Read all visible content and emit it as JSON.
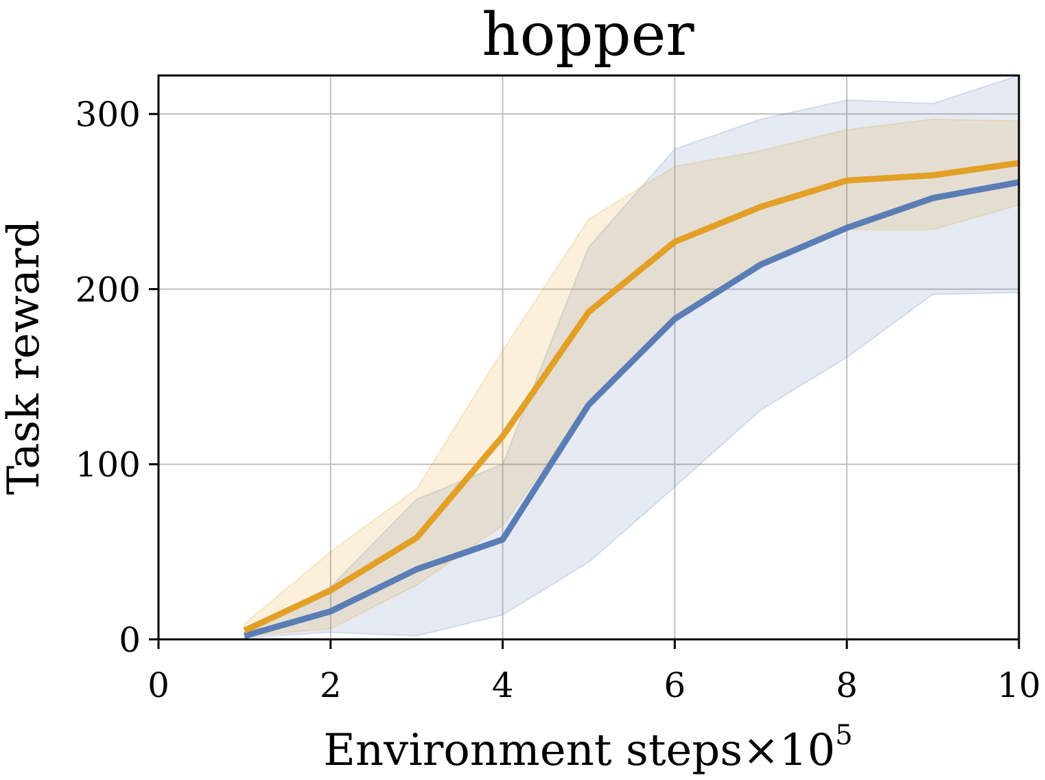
{
  "chart_data": {
    "type": "line",
    "title": "hopper",
    "xlabel": "Environment steps",
    "xlabel_multiplier_base": "10",
    "xlabel_multiplier_exp": "5",
    "ylabel": "Task reward",
    "xlim": [
      0,
      10
    ],
    "ylim": [
      0,
      322
    ],
    "xticks": [
      0,
      2,
      4,
      6,
      8,
      10
    ],
    "yticks": [
      0,
      100,
      200,
      300
    ],
    "grid": true,
    "colors": {
      "series_blue": "#5b7db6",
      "series_orange": "#e3a027",
      "grid": "#bfbfbf",
      "axis": "#000000"
    },
    "series": [
      {
        "color": "#5b7db6",
        "x": [
          1,
          2,
          3,
          4,
          5,
          6,
          7,
          8,
          9,
          10
        ],
        "mean": [
          2,
          16,
          40,
          57,
          134,
          183,
          214,
          235,
          252,
          261
        ],
        "lower": [
          1,
          4,
          2,
          14,
          44,
          87,
          131,
          161,
          197,
          198
        ],
        "upper": [
          4,
          30,
          80,
          100,
          224,
          280,
          297,
          308,
          306,
          322
        ]
      },
      {
        "color": "#e3a027",
        "x": [
          1,
          2,
          3,
          4,
          5,
          6,
          7,
          8,
          9,
          10
        ],
        "mean": [
          5,
          28,
          58,
          116,
          187,
          227,
          247,
          262,
          265,
          272
        ],
        "lower": [
          2,
          6,
          31,
          65,
          134,
          183,
          216,
          234,
          234,
          248
        ],
        "upper": [
          9,
          50,
          86,
          165,
          240,
          270,
          279,
          291,
          297,
          296
        ]
      }
    ]
  }
}
